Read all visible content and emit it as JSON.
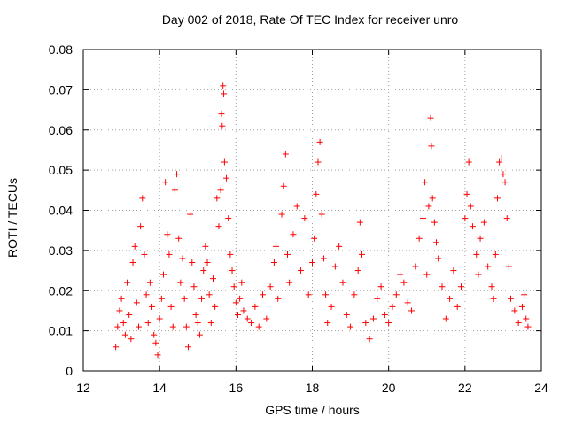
{
  "chart_data": {
    "type": "scatter",
    "title": "Day 002 of 2018, Rate Of TEC Index for receiver unro",
    "xlabel": "GPS time / hours",
    "ylabel": "ROTI / TECUs",
    "xlim": [
      12,
      24
    ],
    "ylim": [
      0,
      0.08
    ],
    "xticks": [
      "12",
      "14",
      "16",
      "18",
      "20",
      "22",
      "24"
    ],
    "yticks": [
      "0",
      "0.01",
      "0.02",
      "0.03",
      "0.04",
      "0.05",
      "0.06",
      "0.07",
      "0.08"
    ],
    "grid": true,
    "marker": "+",
    "series": [
      {
        "name": "ROTI",
        "color": "#ff0000",
        "points": [
          [
            12.85,
            0.006
          ],
          [
            12.9,
            0.011
          ],
          [
            12.95,
            0.015
          ],
          [
            13.0,
            0.018
          ],
          [
            13.05,
            0.012
          ],
          [
            13.1,
            0.009
          ],
          [
            13.15,
            0.022
          ],
          [
            13.2,
            0.014
          ],
          [
            13.25,
            0.008
          ],
          [
            13.3,
            0.027
          ],
          [
            13.35,
            0.031
          ],
          [
            13.4,
            0.017
          ],
          [
            13.45,
            0.011
          ],
          [
            13.5,
            0.036
          ],
          [
            13.55,
            0.043
          ],
          [
            13.6,
            0.029
          ],
          [
            13.65,
            0.019
          ],
          [
            13.7,
            0.012
          ],
          [
            13.75,
            0.022
          ],
          [
            13.8,
            0.016
          ],
          [
            13.85,
            0.009
          ],
          [
            13.9,
            0.007
          ],
          [
            13.95,
            0.004
          ],
          [
            14.0,
            0.013
          ],
          [
            14.05,
            0.018
          ],
          [
            14.1,
            0.024
          ],
          [
            14.15,
            0.047
          ],
          [
            14.2,
            0.034
          ],
          [
            14.25,
            0.029
          ],
          [
            14.3,
            0.016
          ],
          [
            14.35,
            0.011
          ],
          [
            14.4,
            0.045
          ],
          [
            14.45,
            0.049
          ],
          [
            14.5,
            0.033
          ],
          [
            14.55,
            0.022
          ],
          [
            14.6,
            0.028
          ],
          [
            14.65,
            0.018
          ],
          [
            14.7,
            0.011
          ],
          [
            14.75,
            0.006
          ],
          [
            14.8,
            0.039
          ],
          [
            14.85,
            0.027
          ],
          [
            14.9,
            0.021
          ],
          [
            14.95,
            0.014
          ],
          [
            15.0,
            0.012
          ],
          [
            15.05,
            0.009
          ],
          [
            15.1,
            0.018
          ],
          [
            15.15,
            0.025
          ],
          [
            15.2,
            0.031
          ],
          [
            15.25,
            0.027
          ],
          [
            15.3,
            0.019
          ],
          [
            15.35,
            0.012
          ],
          [
            15.4,
            0.023
          ],
          [
            15.45,
            0.016
          ],
          [
            15.5,
            0.043
          ],
          [
            15.55,
            0.036
          ],
          [
            15.6,
            0.045
          ],
          [
            15.62,
            0.064
          ],
          [
            15.64,
            0.061
          ],
          [
            15.66,
            0.071
          ],
          [
            15.68,
            0.069
          ],
          [
            15.7,
            0.052
          ],
          [
            15.75,
            0.048
          ],
          [
            15.8,
            0.038
          ],
          [
            15.85,
            0.029
          ],
          [
            15.9,
            0.025
          ],
          [
            15.95,
            0.021
          ],
          [
            16.0,
            0.017
          ],
          [
            16.05,
            0.014
          ],
          [
            16.1,
            0.018
          ],
          [
            16.15,
            0.022
          ],
          [
            16.2,
            0.015
          ],
          [
            16.3,
            0.013
          ],
          [
            16.4,
            0.012
          ],
          [
            16.5,
            0.016
          ],
          [
            16.6,
            0.011
          ],
          [
            16.7,
            0.019
          ],
          [
            16.8,
            0.013
          ],
          [
            16.9,
            0.021
          ],
          [
            17.0,
            0.027
          ],
          [
            17.05,
            0.031
          ],
          [
            17.1,
            0.018
          ],
          [
            17.2,
            0.039
          ],
          [
            17.25,
            0.046
          ],
          [
            17.3,
            0.054
          ],
          [
            17.35,
            0.029
          ],
          [
            17.4,
            0.022
          ],
          [
            17.5,
            0.034
          ],
          [
            17.6,
            0.041
          ],
          [
            17.7,
            0.025
          ],
          [
            17.8,
            0.038
          ],
          [
            17.9,
            0.019
          ],
          [
            18.0,
            0.027
          ],
          [
            18.05,
            0.033
          ],
          [
            18.1,
            0.044
          ],
          [
            18.15,
            0.052
          ],
          [
            18.2,
            0.057
          ],
          [
            18.25,
            0.039
          ],
          [
            18.3,
            0.028
          ],
          [
            18.35,
            0.019
          ],
          [
            18.4,
            0.012
          ],
          [
            18.5,
            0.016
          ],
          [
            18.6,
            0.026
          ],
          [
            18.7,
            0.031
          ],
          [
            18.8,
            0.022
          ],
          [
            18.9,
            0.014
          ],
          [
            19.0,
            0.011
          ],
          [
            19.1,
            0.019
          ],
          [
            19.2,
            0.025
          ],
          [
            19.25,
            0.037
          ],
          [
            19.3,
            0.029
          ],
          [
            19.4,
            0.012
          ],
          [
            19.5,
            0.008
          ],
          [
            19.6,
            0.013
          ],
          [
            19.7,
            0.018
          ],
          [
            19.8,
            0.021
          ],
          [
            19.9,
            0.014
          ],
          [
            20.0,
            0.012
          ],
          [
            20.1,
            0.016
          ],
          [
            20.2,
            0.019
          ],
          [
            20.3,
            0.024
          ],
          [
            20.4,
            0.022
          ],
          [
            20.5,
            0.017
          ],
          [
            20.6,
            0.015
          ],
          [
            20.7,
            0.026
          ],
          [
            20.8,
            0.033
          ],
          [
            20.9,
            0.038
          ],
          [
            20.95,
            0.047
          ],
          [
            21.0,
            0.024
          ],
          [
            21.05,
            0.041
          ],
          [
            21.1,
            0.063
          ],
          [
            21.12,
            0.056
          ],
          [
            21.15,
            0.043
          ],
          [
            21.2,
            0.037
          ],
          [
            21.25,
            0.032
          ],
          [
            21.3,
            0.028
          ],
          [
            21.4,
            0.021
          ],
          [
            21.5,
            0.013
          ],
          [
            21.6,
            0.018
          ],
          [
            21.7,
            0.025
          ],
          [
            21.8,
            0.016
          ],
          [
            21.9,
            0.021
          ],
          [
            22.0,
            0.038
          ],
          [
            22.05,
            0.044
          ],
          [
            22.1,
            0.052
          ],
          [
            22.15,
            0.041
          ],
          [
            22.2,
            0.036
          ],
          [
            22.3,
            0.029
          ],
          [
            22.35,
            0.024
          ],
          [
            22.4,
            0.033
          ],
          [
            22.5,
            0.037
          ],
          [
            22.6,
            0.026
          ],
          [
            22.7,
            0.021
          ],
          [
            22.75,
            0.018
          ],
          [
            22.8,
            0.029
          ],
          [
            22.85,
            0.043
          ],
          [
            22.9,
            0.052
          ],
          [
            22.95,
            0.053
          ],
          [
            23.0,
            0.049
          ],
          [
            23.05,
            0.047
          ],
          [
            23.1,
            0.038
          ],
          [
            23.15,
            0.026
          ],
          [
            23.2,
            0.018
          ],
          [
            23.3,
            0.015
          ],
          [
            23.4,
            0.012
          ],
          [
            23.5,
            0.016
          ],
          [
            23.55,
            0.019
          ],
          [
            23.6,
            0.013
          ],
          [
            23.65,
            0.011
          ]
        ]
      }
    ]
  }
}
